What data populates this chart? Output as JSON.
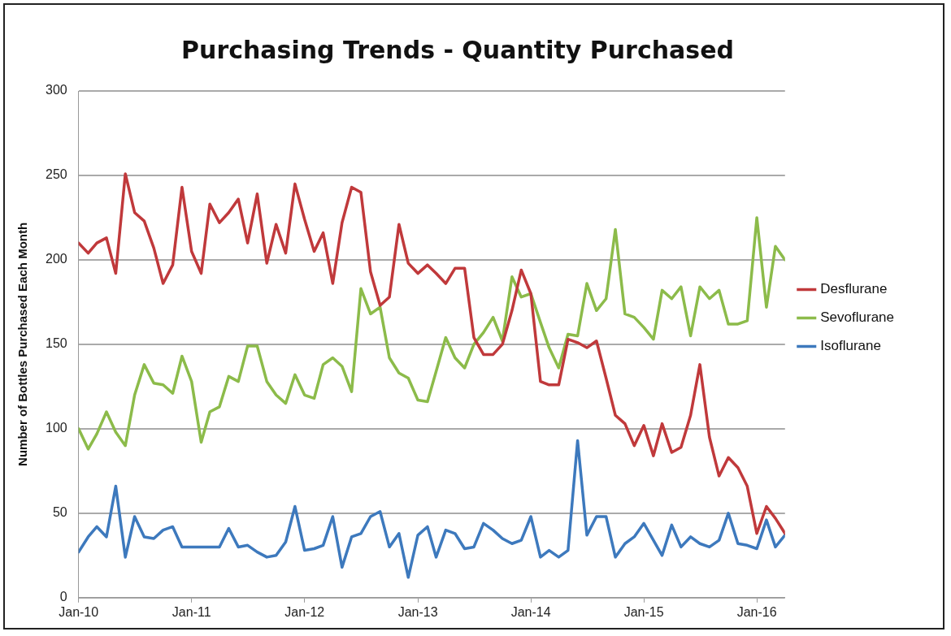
{
  "chart_data": {
    "type": "line",
    "title": "Purchasing Trends - Quantity Purchased",
    "ylabel": "Number of Bottles Purchased Each Month",
    "x": [
      "2010-01",
      "2010-02",
      "2010-03",
      "2010-04",
      "2010-05",
      "2010-06",
      "2010-07",
      "2010-08",
      "2010-09",
      "2010-10",
      "2010-11",
      "2010-12",
      "2011-01",
      "2011-02",
      "2011-03",
      "2011-04",
      "2011-05",
      "2011-06",
      "2011-07",
      "2011-08",
      "2011-09",
      "2011-10",
      "2011-11",
      "2011-12",
      "2012-01",
      "2012-02",
      "2012-03",
      "2012-04",
      "2012-05",
      "2012-06",
      "2012-07",
      "2012-08",
      "2012-09",
      "2012-10",
      "2012-11",
      "2012-12",
      "2013-01",
      "2013-02",
      "2013-03",
      "2013-04",
      "2013-05",
      "2013-06",
      "2013-07",
      "2013-08",
      "2013-09",
      "2013-10",
      "2013-11",
      "2013-12",
      "2014-01",
      "2014-02",
      "2014-03",
      "2014-04",
      "2014-05",
      "2014-06",
      "2014-07",
      "2014-08",
      "2014-09",
      "2014-10",
      "2014-11",
      "2014-12",
      "2015-01",
      "2015-02",
      "2015-03",
      "2015-04",
      "2015-05",
      "2015-06",
      "2015-07",
      "2015-08",
      "2015-09",
      "2015-10",
      "2015-11",
      "2015-12",
      "2016-01",
      "2016-02",
      "2016-03",
      "2016-04"
    ],
    "series": [
      {
        "name": "Desflurane",
        "color": "#c0393b",
        "values": [
          210,
          204,
          210,
          213,
          192,
          251,
          228,
          223,
          207,
          186,
          197,
          243,
          205,
          192,
          233,
          222,
          228,
          236,
          210,
          239,
          198,
          221,
          204,
          245,
          224,
          205,
          216,
          186,
          222,
          243,
          240,
          193,
          173,
          178,
          221,
          198,
          192,
          197,
          192,
          186,
          195,
          195,
          154,
          144,
          144,
          150,
          170,
          194,
          180,
          128,
          126,
          126,
          153,
          151,
          148,
          152,
          130,
          108,
          103,
          90,
          102,
          84,
          103,
          86,
          89,
          108,
          138,
          95,
          72,
          83,
          77,
          66,
          38,
          54,
          47,
          38
        ]
      },
      {
        "name": "Sevoflurane",
        "color": "#8cbb4a",
        "values": [
          100,
          88,
          97,
          110,
          98,
          90,
          120,
          138,
          127,
          126,
          121,
          143,
          128,
          92,
          110,
          113,
          131,
          128,
          149,
          149,
          128,
          120,
          115,
          132,
          120,
          118,
          138,
          142,
          137,
          122,
          183,
          168,
          172,
          142,
          133,
          130,
          117,
          116,
          134,
          154,
          142,
          136,
          150,
          157,
          166,
          152,
          190,
          178,
          180,
          163,
          148,
          136,
          156,
          155,
          186,
          170,
          177,
          218,
          168,
          166,
          160,
          153,
          182,
          177,
          184,
          155,
          184,
          177,
          182,
          162,
          162,
          164,
          225,
          172,
          208,
          200
        ]
      },
      {
        "name": "Isoflurane",
        "color": "#3d79bd",
        "values": [
          27,
          36,
          42,
          36,
          66,
          24,
          48,
          36,
          35,
          40,
          42,
          30,
          30,
          30,
          30,
          30,
          41,
          30,
          31,
          27,
          24,
          25,
          33,
          54,
          28,
          29,
          31,
          48,
          18,
          36,
          38,
          48,
          51,
          30,
          38,
          12,
          37,
          42,
          24,
          40,
          38,
          29,
          30,
          44,
          40,
          35,
          32,
          34,
          48,
          24,
          28,
          24,
          28,
          93,
          37,
          48,
          48,
          24,
          32,
          36,
          44,
          34,
          25,
          43,
          30,
          36,
          32,
          30,
          34,
          50,
          32,
          31,
          29,
          46,
          30,
          37
        ]
      }
    ],
    "xlim": [
      "2010-01",
      "2016-04"
    ],
    "xticks": [
      {
        "value": "2010-01",
        "label": "Jan-10"
      },
      {
        "value": "2011-01",
        "label": "Jan-11"
      },
      {
        "value": "2012-01",
        "label": "Jan-12"
      },
      {
        "value": "2013-01",
        "label": "Jan-13"
      },
      {
        "value": "2014-01",
        "label": "Jan-14"
      },
      {
        "value": "2015-01",
        "label": "Jan-15"
      },
      {
        "value": "2016-01",
        "label": "Jan-16"
      }
    ],
    "ylim": [
      0,
      300
    ],
    "yticks": [
      0,
      50,
      100,
      150,
      200,
      250,
      300
    ],
    "grid": "y",
    "legend": "right",
    "marker": "none",
    "line_style": "solid"
  }
}
